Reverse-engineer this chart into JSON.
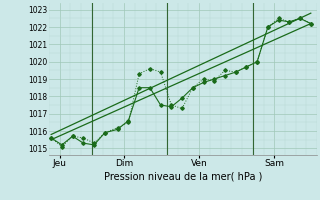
{
  "background_color": "#cce8e8",
  "grid_color_major": "#a0c8b8",
  "grid_color_minor": "#b8d8d0",
  "line_color": "#1a6b1a",
  "xlabel": "Pression niveau de la mer( hPa )",
  "yticks": [
    1015,
    1016,
    1017,
    1018,
    1019,
    1020,
    1021,
    1022,
    1023
  ],
  "ylim": [
    1014.6,
    1023.4
  ],
  "day_labels": [
    "Jeu",
    "Dim",
    "Ven",
    "Sam"
  ],
  "day_positions": [
    0.5,
    3.5,
    7.0,
    10.5
  ],
  "vlines": [
    2.0,
    5.5,
    9.5
  ],
  "xlim": [
    0,
    12.5
  ],
  "series1_dotted": {
    "x": [
      0.1,
      0.6,
      1.1,
      1.6,
      2.1,
      2.6,
      3.2,
      3.7,
      4.2,
      4.7,
      5.2,
      5.7,
      6.2,
      6.7,
      7.2,
      7.7,
      8.2,
      8.7,
      9.2,
      9.7,
      10.2,
      10.7,
      11.2,
      11.7,
      12.2
    ],
    "y": [
      1015.6,
      1015.1,
      1015.7,
      1015.6,
      1015.3,
      1015.9,
      1016.2,
      1016.5,
      1019.3,
      1019.6,
      1019.4,
      1017.5,
      1017.3,
      1018.5,
      1019.0,
      1018.9,
      1019.5,
      1019.4,
      1019.7,
      1020.0,
      1022.0,
      1022.5,
      1022.3,
      1022.5,
      1022.2
    ]
  },
  "series2_solid": {
    "x": [
      0.1,
      0.6,
      1.1,
      1.6,
      2.1,
      2.6,
      3.2,
      3.7,
      4.2,
      4.7,
      5.2,
      5.7,
      6.2,
      6.7,
      7.2,
      7.7,
      8.2,
      8.7,
      9.2,
      9.7,
      10.2,
      10.7,
      11.2,
      11.7,
      12.2
    ],
    "y": [
      1015.6,
      1015.2,
      1015.7,
      1015.3,
      1015.2,
      1015.9,
      1016.1,
      1016.6,
      1018.5,
      1018.5,
      1017.5,
      1017.4,
      1017.9,
      1018.5,
      1018.8,
      1019.0,
      1019.2,
      1019.4,
      1019.7,
      1020.0,
      1022.0,
      1022.4,
      1022.3,
      1022.5,
      1022.2
    ]
  },
  "series3_linear": {
    "x": [
      0.1,
      12.2
    ],
    "y": [
      1015.5,
      1022.2
    ]
  },
  "series4_linear2": {
    "x": [
      0.1,
      12.2
    ],
    "y": [
      1015.8,
      1022.8
    ]
  }
}
